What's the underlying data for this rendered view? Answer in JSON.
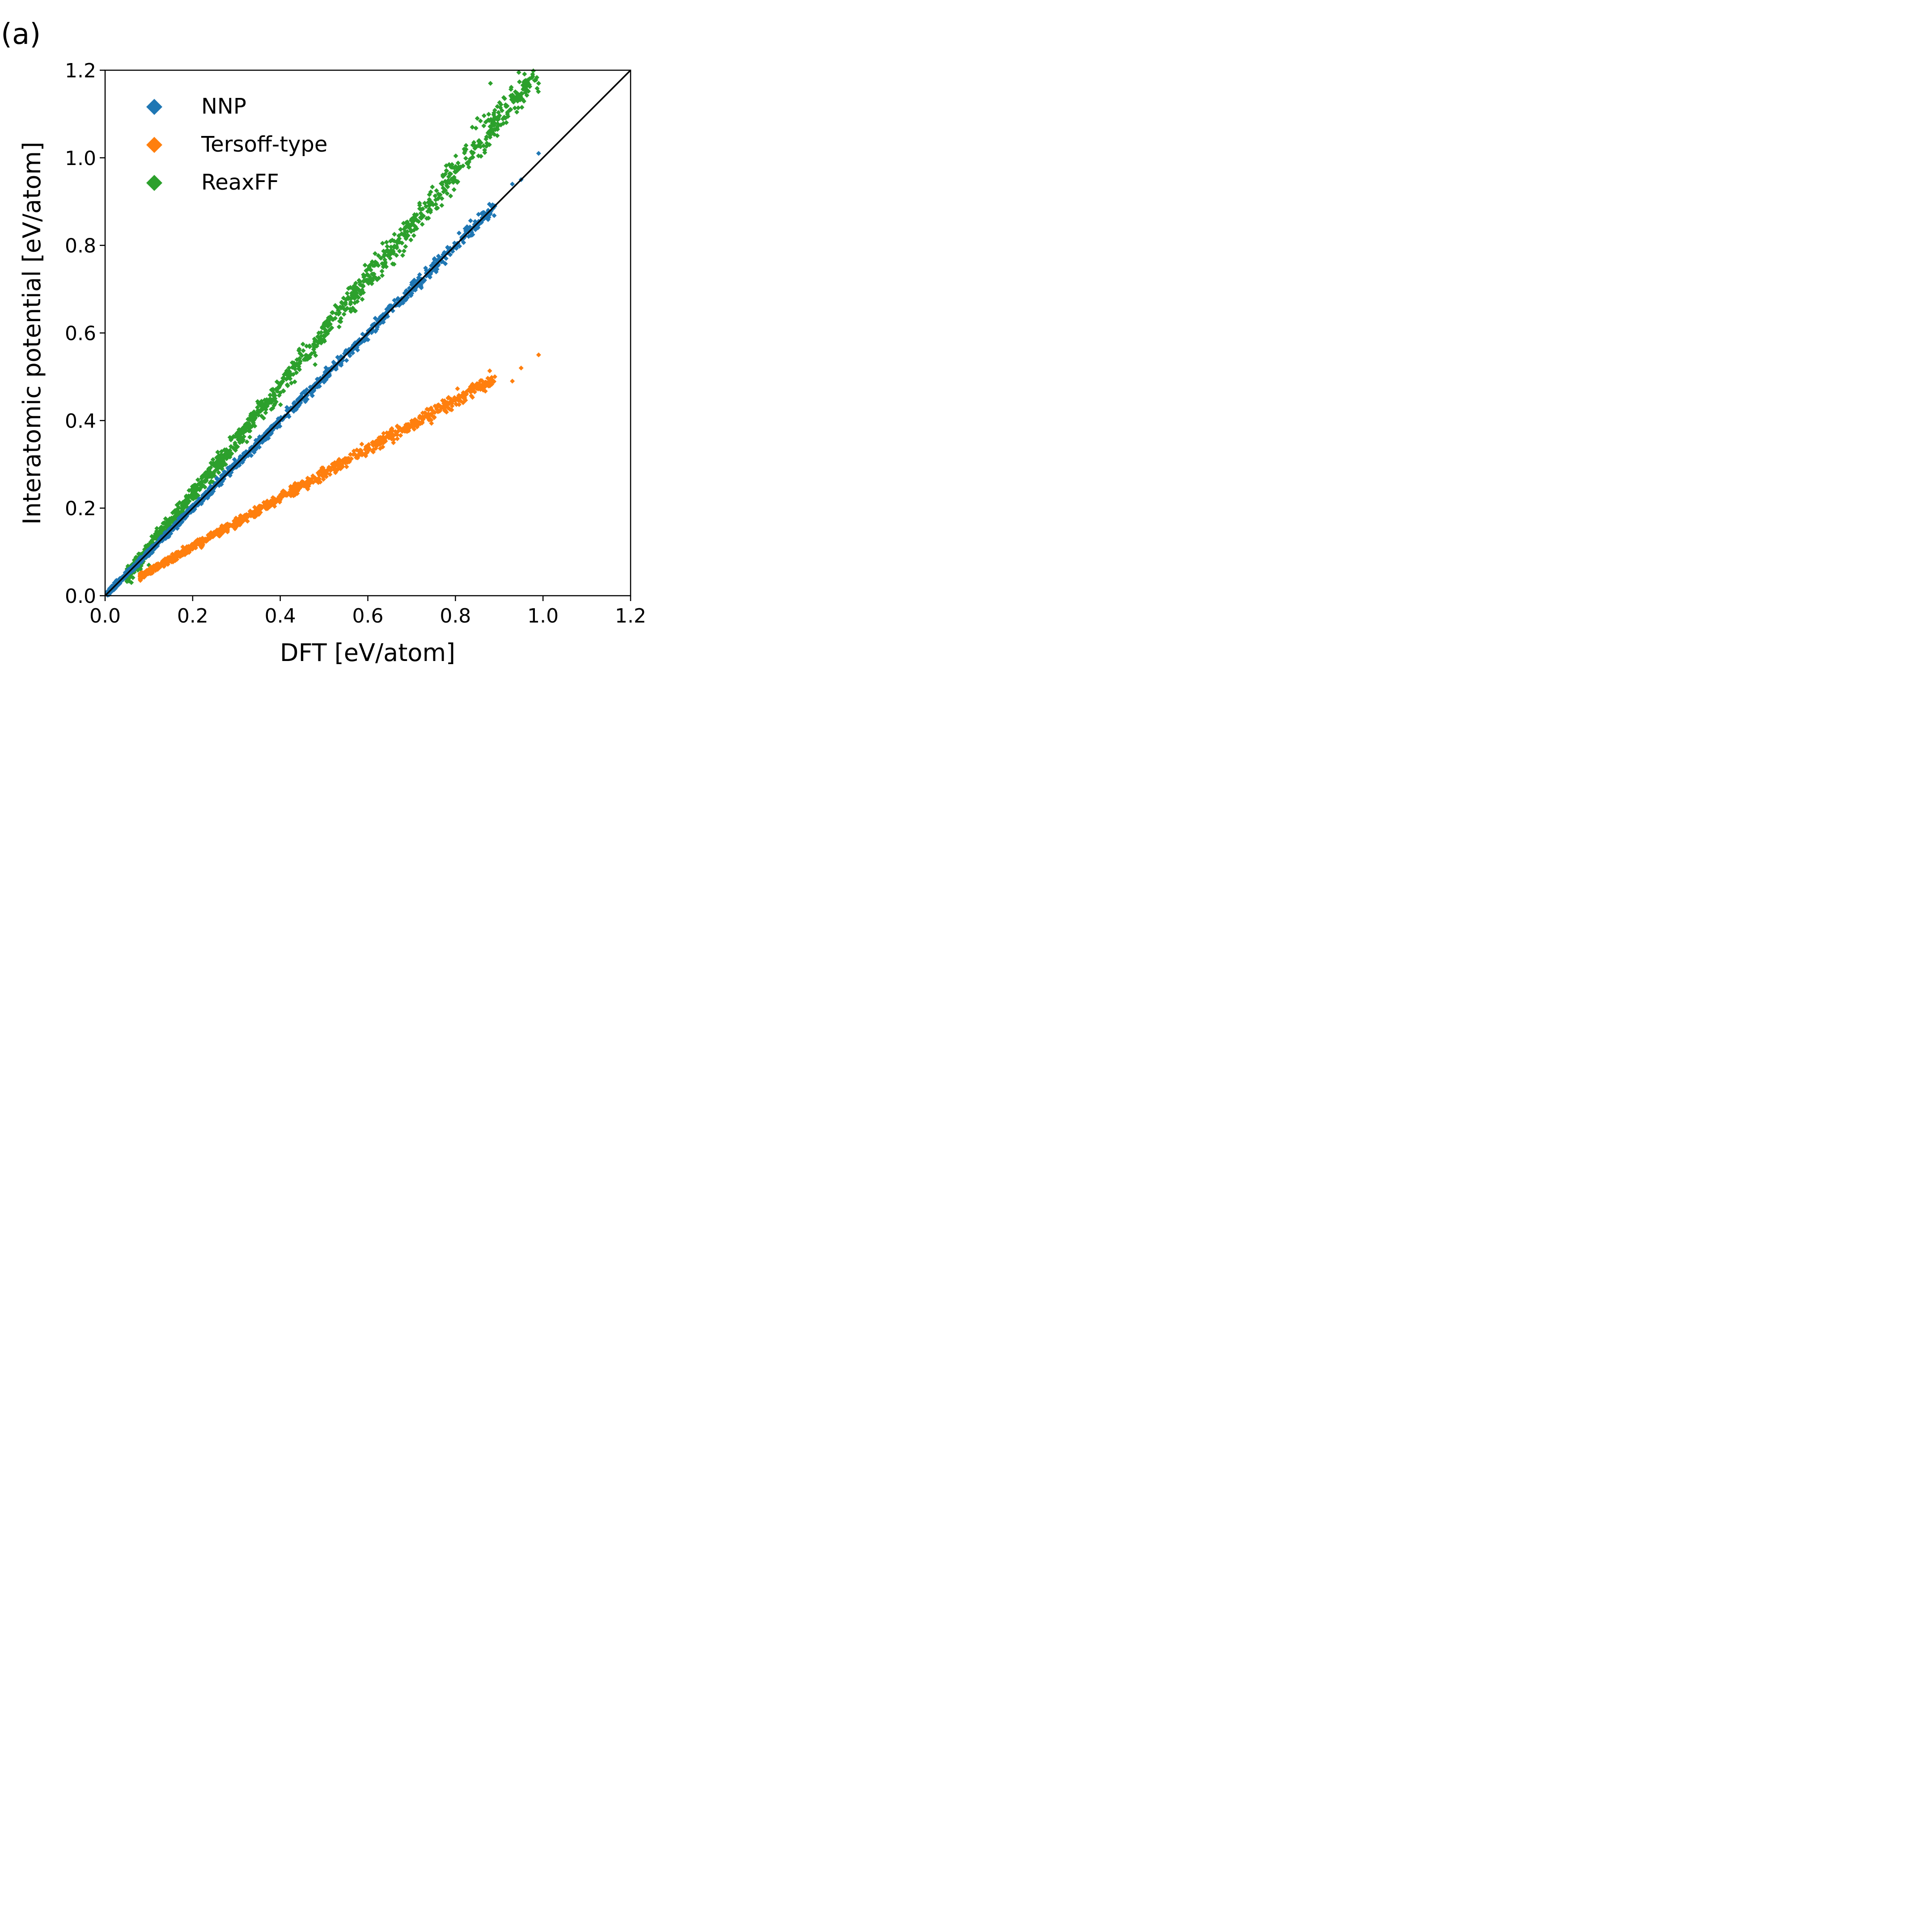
{
  "panel_label": "(a)",
  "chart_data": {
    "type": "scatter",
    "title": "",
    "xlabel": "DFT [eV/atom]",
    "ylabel": "Interatomic potential [eV/atom]",
    "xlim": [
      0.0,
      1.2
    ],
    "ylim": [
      0.0,
      1.2
    ],
    "xticks": [
      "0.0",
      "0.2",
      "0.4",
      "0.6",
      "0.8",
      "1.0",
      "1.2"
    ],
    "yticks": [
      "0.0",
      "0.2",
      "0.4",
      "0.6",
      "0.8",
      "1.0",
      "1.2"
    ],
    "grid": false,
    "legend_position": "top-left",
    "reference_line": {
      "label": "y = x",
      "color": "#000000",
      "from": [
        0.0,
        0.0
      ],
      "to": [
        1.2,
        1.2
      ]
    },
    "series": [
      {
        "name": "NNP",
        "color": "#1f77b4",
        "marker": "diamond",
        "trend": {
          "x_start": 0.005,
          "x_end": 0.89,
          "slope": 1.0,
          "intercept": 0.0,
          "spread": 0.012
        },
        "points": [
          [
            0.01,
            0.01
          ],
          [
            0.06,
            0.06
          ],
          [
            0.09,
            0.09
          ],
          [
            0.12,
            0.12
          ],
          [
            0.15,
            0.15
          ],
          [
            0.18,
            0.18
          ],
          [
            0.22,
            0.21
          ],
          [
            0.26,
            0.26
          ],
          [
            0.3,
            0.3
          ],
          [
            0.35,
            0.35
          ],
          [
            0.4,
            0.4
          ],
          [
            0.45,
            0.45
          ],
          [
            0.5,
            0.5
          ],
          [
            0.55,
            0.56
          ],
          [
            0.6,
            0.6
          ],
          [
            0.65,
            0.66
          ],
          [
            0.7,
            0.71
          ],
          [
            0.75,
            0.76
          ],
          [
            0.8,
            0.8
          ],
          [
            0.85,
            0.84
          ],
          [
            0.89,
            0.89
          ],
          [
            0.93,
            0.94
          ],
          [
            0.95,
            0.95
          ],
          [
            0.99,
            1.01
          ]
        ]
      },
      {
        "name": "Tersoff-type",
        "color": "#ff7f0e",
        "marker": "diamond",
        "trend": {
          "x_start": 0.08,
          "x_end": 0.89,
          "slope": 0.56,
          "intercept": 0.0,
          "spread": 0.012
        },
        "points": [
          [
            0.08,
            0.04
          ],
          [
            0.12,
            0.06
          ],
          [
            0.16,
            0.08
          ],
          [
            0.22,
            0.11
          ],
          [
            0.28,
            0.15
          ],
          [
            0.34,
            0.18
          ],
          [
            0.4,
            0.22
          ],
          [
            0.46,
            0.26
          ],
          [
            0.52,
            0.3
          ],
          [
            0.58,
            0.33
          ],
          [
            0.64,
            0.36
          ],
          [
            0.7,
            0.39
          ],
          [
            0.76,
            0.42
          ],
          [
            0.82,
            0.45
          ],
          [
            0.87,
            0.48
          ],
          [
            0.89,
            0.5
          ],
          [
            0.93,
            0.49
          ],
          [
            0.95,
            0.52
          ],
          [
            0.99,
            0.55
          ]
        ]
      },
      {
        "name": "ReaxFF",
        "color": "#2ca02c",
        "marker": "diamond",
        "trend": {
          "x_start": 0.05,
          "x_end": 0.99,
          "slope": 1.23,
          "intercept": -0.015,
          "spread": 0.03
        },
        "points": [
          [
            0.01,
            0.01
          ],
          [
            0.06,
            0.03
          ],
          [
            0.1,
            0.07
          ],
          [
            0.14,
            0.16
          ],
          [
            0.18,
            0.2
          ],
          [
            0.22,
            0.26
          ],
          [
            0.26,
            0.32
          ],
          [
            0.3,
            0.37
          ],
          [
            0.34,
            0.42
          ],
          [
            0.38,
            0.47
          ],
          [
            0.42,
            0.52
          ],
          [
            0.46,
            0.57
          ],
          [
            0.5,
            0.62
          ],
          [
            0.54,
            0.67
          ],
          [
            0.58,
            0.72
          ],
          [
            0.62,
            0.76
          ],
          [
            0.66,
            0.81
          ],
          [
            0.7,
            0.86
          ],
          [
            0.74,
            0.9
          ],
          [
            0.78,
            0.97
          ],
          [
            0.82,
            1.02
          ],
          [
            0.85,
            1.09
          ],
          [
            0.88,
            1.17
          ],
          [
            0.94,
            1.14
          ],
          [
            0.99,
            1.17
          ]
        ]
      }
    ]
  }
}
